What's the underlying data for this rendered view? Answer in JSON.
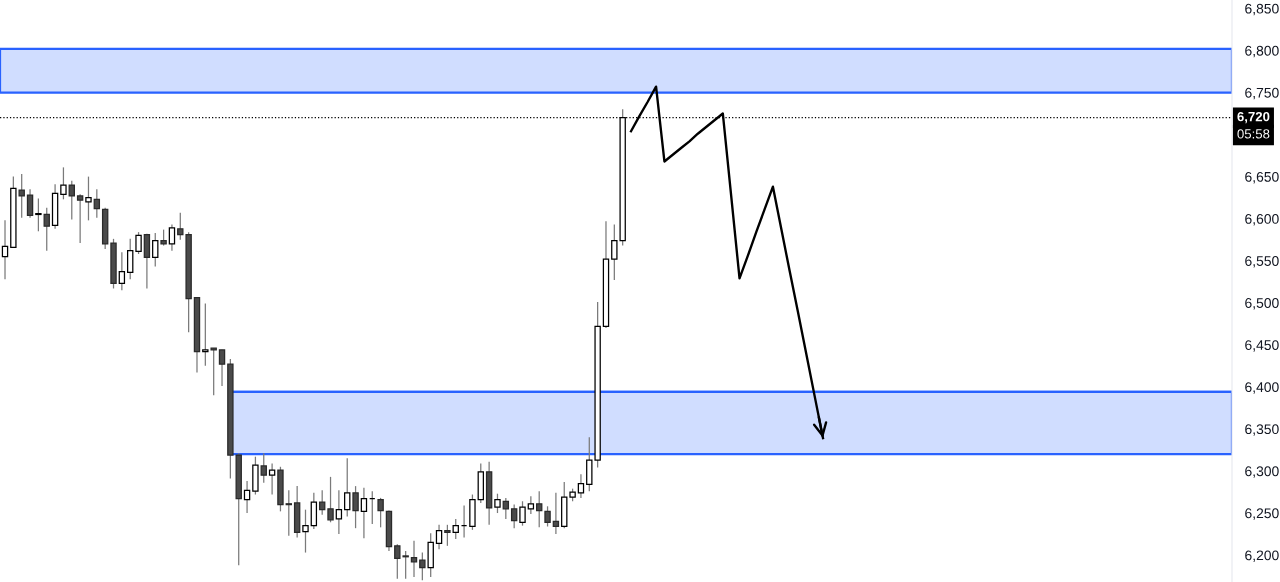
{
  "chart_data": {
    "type": "candlestick",
    "categories": [
      null,
      null,
      null,
      null,
      null,
      null,
      null,
      null,
      null,
      null,
      null,
      null,
      null,
      null,
      null,
      null,
      null,
      null,
      null,
      null,
      null,
      null,
      null,
      null,
      null,
      null,
      null,
      null,
      null,
      null,
      null,
      null,
      null,
      null,
      null,
      null,
      null,
      null,
      null,
      null,
      null,
      null,
      null,
      null,
      null,
      null,
      null,
      null,
      null,
      null,
      null,
      null,
      null,
      null,
      null,
      null,
      null,
      null,
      null,
      null,
      null,
      null,
      null,
      null,
      null,
      null,
      null,
      null,
      null,
      null,
      null,
      null,
      null,
      null,
      null,
      null,
      null,
      null,
      null,
      null,
      null,
      null,
      null,
      null,
      null,
      null,
      null,
      null,
      null,
      null,
      null,
      null,
      null,
      null,
      null,
      null,
      null,
      null,
      null,
      null,
      null,
      null,
      null,
      null,
      null,
      null,
      null,
      null,
      null,
      null,
      null,
      null,
      null,
      null,
      null,
      null,
      null,
      null,
      null,
      null,
      null,
      null,
      null,
      null,
      null,
      null,
      null,
      null,
      null,
      null,
      null,
      null,
      null,
      null,
      null,
      null,
      null,
      null,
      null,
      null,
      null,
      null,
      null,
      null,
      null,
      null,
      null,
      null
    ],
    "ohlc": [
      [
        6555,
        6598,
        6528,
        6567
      ],
      [
        6566,
        6650,
        6565,
        6636
      ],
      [
        6634,
        6653,
        6601,
        6627
      ],
      [
        6628,
        6635,
        6601,
        6604
      ],
      [
        6605,
        6624,
        6585,
        6606
      ],
      [
        6605,
        6613,
        6562,
        6591
      ],
      [
        6592,
        6641,
        6588,
        6630
      ],
      [
        6629,
        6661,
        6623,
        6640
      ],
      [
        6640,
        6645,
        6599,
        6627
      ],
      [
        6627,
        6629,
        6571,
        6622
      ],
      [
        6620,
        6650,
        6598,
        6625
      ],
      [
        6623,
        6635,
        6601,
        6612
      ],
      [
        6611,
        6613,
        6564,
        6570
      ],
      [
        6571,
        6576,
        6517,
        6523
      ],
      [
        6523,
        6560,
        6515,
        6537
      ],
      [
        6536,
        6576,
        6528,
        6562
      ],
      [
        6561,
        6584,
        6558,
        6580
      ],
      [
        6581,
        6582,
        6517,
        6554
      ],
      [
        6554,
        6583,
        6543,
        6574
      ],
      [
        6574,
        6587,
        6568,
        6570
      ],
      [
        6570,
        6593,
        6562,
        6589
      ],
      [
        6588,
        6607,
        6575,
        6581
      ],
      [
        6581,
        6584,
        6465,
        6505
      ],
      [
        6506,
        6506,
        6417,
        6442
      ],
      [
        6442,
        6499,
        6425,
        6444
      ],
      [
        6446,
        6446,
        6390,
        6444
      ],
      [
        6444,
        6444,
        6401,
        6427
      ],
      [
        6427,
        6433,
        6291,
        6319
      ],
      [
        6319,
        6321,
        6188,
        6267
      ],
      [
        6266,
        6288,
        6250,
        6277
      ],
      [
        6276,
        6317,
        6272,
        6307
      ],
      [
        6306,
        6321,
        6286,
        6295
      ],
      [
        6295,
        6309,
        6272,
        6301
      ],
      [
        6301,
        6305,
        6252,
        6260
      ],
      [
        6261,
        6277,
        6223,
        6260
      ],
      [
        6262,
        6282,
        6221,
        6227
      ],
      [
        6228,
        6254,
        6203,
        6235
      ],
      [
        6235,
        6274,
        6231,
        6263
      ],
      [
        6263,
        6277,
        6248,
        6254
      ],
      [
        6255,
        6293,
        6239,
        6242
      ],
      [
        6243,
        6277,
        6225,
        6254
      ],
      [
        6254,
        6315,
        6246,
        6274
      ],
      [
        6274,
        6282,
        6232,
        6253
      ],
      [
        6252,
        6280,
        6220,
        6267
      ],
      [
        6267,
        6276,
        6237,
        6267
      ],
      [
        6266,
        6268,
        6233,
        6253
      ],
      [
        6252,
        6253,
        6205,
        6210
      ],
      [
        6211,
        6213,
        6172,
        6196
      ],
      [
        6199,
        6205,
        6172,
        6198
      ],
      [
        6197,
        6217,
        6174,
        6192
      ],
      [
        6194,
        6203,
        6170,
        6185
      ],
      [
        6185,
        6226,
        6174,
        6215
      ],
      [
        6214,
        6236,
        6207,
        6229
      ],
      [
        6229,
        6236,
        6211,
        6227
      ],
      [
        6227,
        6243,
        6219,
        6235
      ],
      [
        6235,
        6259,
        6221,
        6235
      ],
      [
        6234,
        6272,
        6230,
        6266
      ],
      [
        6266,
        6309,
        6262,
        6299
      ],
      [
        6299,
        6311,
        6236,
        6256
      ],
      [
        6257,
        6273,
        6250,
        6266
      ],
      [
        6264,
        6268,
        6243,
        6255
      ],
      [
        6255,
        6260,
        6232,
        6241
      ],
      [
        6239,
        6264,
        6235,
        6257
      ],
      [
        6255,
        6270,
        6249,
        6261
      ],
      [
        6261,
        6276,
        6233,
        6253
      ],
      [
        6252,
        6258,
        6234,
        6239
      ],
      [
        6240,
        6274,
        6225,
        6234
      ],
      [
        6234,
        6287,
        6232,
        6269
      ],
      [
        6269,
        6279,
        6264,
        6275
      ],
      [
        6274,
        6296,
        6268,
        6285
      ],
      [
        6284,
        6340,
        6276,
        6313
      ],
      [
        6313,
        6501,
        6304,
        6472
      ],
      [
        6472,
        6597,
        6470,
        6552
      ],
      [
        6552,
        6593,
        6527,
        6574
      ],
      [
        6574,
        6730,
        6568,
        6720
      ],
      null,
      null,
      null,
      null,
      null,
      null,
      null,
      null,
      null,
      null,
      null,
      null,
      null,
      null,
      null,
      null,
      null,
      null,
      null,
      null,
      null,
      null,
      null,
      null,
      null,
      null,
      null,
      null,
      null,
      null,
      null,
      null,
      null,
      null,
      null,
      null,
      null,
      null,
      null,
      null,
      null,
      null,
      null,
      null,
      null,
      null,
      null,
      null,
      null,
      null,
      null,
      null,
      null,
      null,
      null,
      null,
      null,
      null,
      null,
      null,
      null,
      null,
      null,
      null,
      null,
      null,
      null,
      null,
      null,
      null,
      null,
      null,
      null
    ],
    "series": [
      {
        "type": "line",
        "color": "#2962ff",
        "values": [
          null,
          null,
          null,
          null,
          null,
          null,
          null,
          null,
          null,
          null,
          null,
          null,
          null,
          null,
          null,
          null,
          null,
          null,
          null,
          null,
          null,
          null,
          null,
          null,
          null,
          null,
          null,
          6394,
          6394,
          6394,
          6394,
          6394,
          6394,
          6394,
          6394,
          6394,
          6394,
          6394,
          6394,
          6394,
          6394,
          6394,
          6394,
          6394,
          6394,
          6394,
          6394,
          6394,
          6394,
          6394,
          6394,
          6394,
          6394,
          6394,
          6394,
          6394,
          6394,
          6394,
          6394,
          6394,
          6394,
          6394,
          6394,
          6394,
          6394,
          6394,
          6394,
          6394,
          6394,
          6394,
          6394,
          6394,
          6394,
          6394,
          6394,
          6394,
          6394,
          6394,
          6394,
          6394,
          6394,
          6394,
          6394,
          6394,
          6394,
          6394,
          6394,
          6394,
          6394,
          6394,
          6394,
          6394,
          6394,
          6394,
          6394,
          6394,
          6394,
          6394,
          6394,
          6394,
          6394,
          6394,
          6394,
          6394,
          6394,
          6394,
          6394,
          6394,
          6394,
          6394,
          6394,
          6394,
          6394,
          6394,
          6394,
          6394,
          6394,
          6394,
          6394,
          6394,
          6394,
          6394,
          6394,
          6394,
          6394,
          6394,
          6394,
          6394,
          6394,
          6394,
          6394,
          6394,
          6394,
          6394,
          6394,
          6394,
          6394,
          6394,
          6394,
          6394,
          6394,
          6394,
          6394,
          6394,
          6394,
          6394,
          6394,
          6394
        ],
        "lower": [
          null,
          null,
          null,
          null,
          null,
          null,
          null,
          null,
          null,
          null,
          null,
          null,
          null,
          null,
          null,
          null,
          null,
          null,
          null,
          null,
          null,
          null,
          null,
          null,
          null,
          null,
          null,
          6320,
          6320,
          6320,
          6320,
          6320,
          6320,
          6320,
          6320,
          6320,
          6320,
          6320,
          6320,
          6320,
          6320,
          6320,
          6320,
          6320,
          6320,
          6320,
          6320,
          6320,
          6320,
          6320,
          6320,
          6320,
          6320,
          6320,
          6320,
          6320,
          6320,
          6320,
          6320,
          6320,
          6320,
          6320,
          6320,
          6320,
          6320,
          6320,
          6320,
          6320,
          6320,
          6320,
          6320,
          6320,
          6320,
          6320,
          6320,
          6320,
          6320,
          6320,
          6320,
          6320,
          6320,
          6320,
          6320,
          6320,
          6320,
          6320,
          6320,
          6320,
          6320,
          6320,
          6320,
          6320,
          6320,
          6320,
          6320,
          6320,
          6320,
          6320,
          6320,
          6320,
          6320,
          6320,
          6320,
          6320,
          6320,
          6320,
          6320,
          6320,
          6320,
          6320,
          6320,
          6320,
          6320,
          6320,
          6320,
          6320,
          6320,
          6320,
          6320,
          6320,
          6320,
          6320,
          6320,
          6320,
          6320,
          6320,
          6320,
          6320,
          6320,
          6320,
          6320,
          6320,
          6320,
          6320,
          6320,
          6320,
          6320,
          6320,
          6320,
          6320,
          6320,
          6320,
          6320,
          6320,
          6320,
          6320,
          6320,
          6320
        ],
        "upper": [
          null,
          null,
          null,
          null,
          null,
          null,
          null,
          null,
          null,
          null,
          null,
          null,
          null,
          null,
          null,
          null,
          null,
          null,
          null,
          null,
          null,
          null,
          null,
          null,
          null,
          null,
          null,
          6394,
          6394,
          6394,
          6394,
          6394,
          6394,
          6394,
          6394,
          6394,
          6394,
          6394,
          6394,
          6394,
          6394,
          6394,
          6394,
          6394,
          6394,
          6394,
          6394,
          6394,
          6394,
          6394,
          6394,
          6394,
          6394,
          6394,
          6394,
          6394,
          6394,
          6394,
          6394,
          6394,
          6394,
          6394,
          6394,
          6394,
          6394,
          6394,
          6394,
          6394,
          6394,
          6394,
          6394,
          6394,
          6394,
          6394,
          6394,
          6394,
          6394,
          6394,
          6394,
          6394,
          6394,
          6394,
          6394,
          6394,
          6394,
          6394,
          6394,
          6394,
          6394,
          6394,
          6394,
          6394,
          6394,
          6394,
          6394,
          6394,
          6394,
          6394,
          6394,
          6394,
          6394,
          6394,
          6394,
          6394,
          6394,
          6394,
          6394,
          6394,
          6394,
          6394,
          6394,
          6394,
          6394,
          6394,
          6394,
          6394,
          6394,
          6394,
          6394,
          6394,
          6394,
          6394,
          6394,
          6394,
          6394,
          6394,
          6394,
          6394,
          6394,
          6394,
          6394,
          6394,
          6394,
          6394,
          6394,
          6394,
          6394,
          6394,
          6394,
          6394,
          6394,
          6394,
          6394,
          6394,
          6394,
          6394,
          6394,
          6394
        ]
      },
      {
        "type": "line",
        "color": "#000000",
        "values": [
          null,
          null,
          null,
          null,
          null,
          null,
          null,
          null,
          null,
          null,
          null,
          null,
          null,
          null,
          null,
          null,
          null,
          null,
          null,
          null,
          null,
          null,
          null,
          null,
          null,
          null,
          null,
          null,
          null,
          null,
          null,
          null,
          null,
          null,
          null,
          null,
          null,
          null,
          null,
          null,
          null,
          null,
          null,
          null,
          null,
          null,
          null,
          null,
          null,
          null,
          null,
          null,
          null,
          null,
          null,
          null,
          null,
          null,
          null,
          null,
          null,
          null,
          null,
          null,
          null,
          null,
          null,
          null,
          null,
          null,
          null,
          null,
          null,
          null,
          null,
          6704,
          6722,
          6739,
          6757,
          6668,
          6676,
          6684,
          6692,
          6701,
          6709,
          6717,
          6725,
          6627,
          6529,
          6556,
          6584,
          6611,
          6638,
          6588,
          6538,
          6489,
          6439,
          6389,
          6339,
          null,
          null,
          null,
          null,
          null,
          null,
          null,
          null,
          null,
          null,
          null,
          null,
          null,
          null,
          null,
          null,
          null,
          null,
          null,
          null,
          null,
          null,
          null,
          null,
          null,
          null,
          null,
          null,
          null,
          null,
          null,
          null,
          null,
          null,
          null,
          null,
          null,
          null,
          null,
          null,
          null,
          null,
          null,
          null,
          null,
          null,
          null,
          null,
          null
        ]
      }
    ],
    "bands": [
      {
        "axis": "y",
        "from": 6750,
        "to": 6802,
        "color": "#2962ff"
      }
    ],
    "ref_lines": [
      {
        "axis": "y",
        "value": 6720,
        "label": "6,720",
        "color": "#000000",
        "line_style": "dotted"
      }
    ],
    "annotations": [
      "05:58"
    ],
    "ylim": [
      6168,
      6860
    ],
    "yticks": [
      {
        "value": 6200,
        "label": "6,200"
      },
      {
        "value": 6250,
        "label": "6,250"
      },
      {
        "value": 6300,
        "label": "6,300"
      },
      {
        "value": 6350,
        "label": "6,350"
      },
      {
        "value": 6400,
        "label": "6,400"
      },
      {
        "value": 6450,
        "label": "6,450"
      },
      {
        "value": 6500,
        "label": "6,500"
      },
      {
        "value": 6550,
        "label": "6,550"
      },
      {
        "value": 6600,
        "label": "6,600"
      },
      {
        "value": 6650,
        "label": "6,650"
      },
      {
        "value": 6750,
        "label": "6,750"
      },
      {
        "value": 6800,
        "label": "6,800"
      },
      {
        "value": 6850,
        "label": "6,850"
      }
    ],
    "tick_labels": "y"
  }
}
